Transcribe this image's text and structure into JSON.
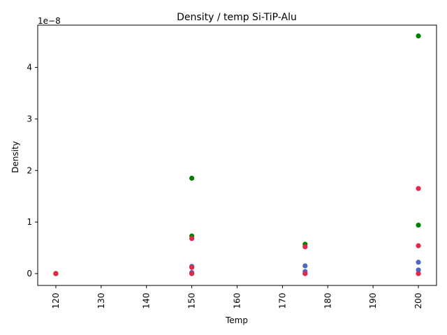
{
  "chart_data": {
    "type": "scatter",
    "title": "Density / temp Si-TiP-Alu",
    "xlabel": "Temp",
    "ylabel": "Density",
    "offset_text": "1e−8",
    "xlim": [
      116,
      204
    ],
    "ylim": [
      -0.23,
      4.82
    ],
    "scale_note": "y values in units of 1e-8",
    "xticks": [
      120,
      130,
      140,
      150,
      160,
      170,
      180,
      190,
      200
    ],
    "yticks": [
      0,
      1,
      2,
      3,
      4
    ],
    "grid": false,
    "series": [
      {
        "color": "#4b6abf",
        "points": [
          {
            "x": 120,
            "y": 0.0
          },
          {
            "x": 120,
            "y": 0.0
          },
          {
            "x": 150,
            "y": 0.14
          },
          {
            "x": 150,
            "y": 0.02
          },
          {
            "x": 150,
            "y": 0.0
          },
          {
            "x": 175,
            "y": 0.15
          },
          {
            "x": 175,
            "y": 0.04
          },
          {
            "x": 175,
            "y": 0.0
          },
          {
            "x": 200,
            "y": 0.22
          },
          {
            "x": 200,
            "y": 0.07
          },
          {
            "x": 200,
            "y": 0.0
          }
        ]
      },
      {
        "color": "#008000",
        "points": [
          {
            "x": 120,
            "y": 0.0
          },
          {
            "x": 120,
            "y": 0.0
          },
          {
            "x": 150,
            "y": 1.85
          },
          {
            "x": 150,
            "y": 0.73
          },
          {
            "x": 175,
            "y": 0.57
          },
          {
            "x": 200,
            "y": 4.61
          },
          {
            "x": 200,
            "y": 0.94
          }
        ]
      },
      {
        "color": "#e2294a",
        "points": [
          {
            "x": 120,
            "y": 0.0
          },
          {
            "x": 120,
            "y": 0.0
          },
          {
            "x": 150,
            "y": 0.68
          },
          {
            "x": 150,
            "y": 0.12
          },
          {
            "x": 150,
            "y": 0.0
          },
          {
            "x": 175,
            "y": 0.52
          },
          {
            "x": 175,
            "y": 0.0
          },
          {
            "x": 200,
            "y": 1.65
          },
          {
            "x": 200,
            "y": 0.54
          },
          {
            "x": 200,
            "y": 0.0
          }
        ]
      }
    ]
  }
}
